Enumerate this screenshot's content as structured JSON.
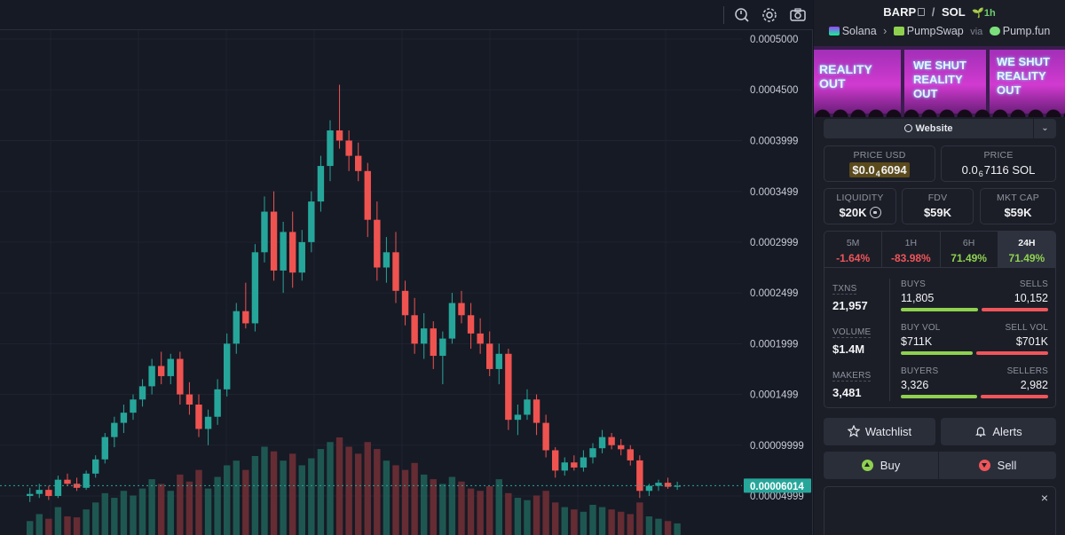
{
  "toolbar": {
    "icons": [
      "compare-icon",
      "settings-gear-icon",
      "camera-icon"
    ]
  },
  "price_axis": {
    "ticks": [
      "0.0005000",
      "0.0004500",
      "0.0003999",
      "0.0003499",
      "0.0002999",
      "0.0002499",
      "0.0001999",
      "0.0001499",
      "0.00009999",
      "0.00004999"
    ],
    "current_price_label": "0.00006014",
    "current_price_color": "#26a69a"
  },
  "chart_data": {
    "type": "candlestick",
    "up_color": "#26a69a",
    "down_color": "#ef5350",
    "ylim": [
      3e-05,
      0.0005
    ],
    "candles": [
      [
        5e-05,
        5.8e-05,
        4.4e-05,
        5.2e-05
      ],
      [
        5.2e-05,
        6.2e-05,
        4.8e-05,
        5.6e-05
      ],
      [
        5.6e-05,
        6e-05,
        4.6e-05,
        5e-05
      ],
      [
        5e-05,
        7e-05,
        4.8e-05,
        6.6e-05
      ],
      [
        6.6e-05,
        7.2e-05,
        6e-05,
        6.2e-05
      ],
      [
        6.2e-05,
        6.8e-05,
        5.5e-05,
        5.8e-05
      ],
      [
        5.8e-05,
        7.5e-05,
        5.6e-05,
        7.2e-05
      ],
      [
        7.2e-05,
        9e-05,
        6.8e-05,
        8.6e-05
      ],
      [
        8.6e-05,
        0.000112,
        8.2e-05,
        0.000108
      ],
      [
        0.000108,
        0.000128,
        9.8e-05,
        0.000122
      ],
      [
        0.000122,
        0.00014,
        0.000112,
        0.000132
      ],
      [
        0.000132,
        0.00015,
        0.000125,
        0.000145
      ],
      [
        0.000145,
        0.000165,
        0.000138,
        0.000158
      ],
      [
        0.000158,
        0.000185,
        0.00015,
        0.000178
      ],
      [
        0.000178,
        0.000192,
        0.00016,
        0.000168
      ],
      [
        0.000168,
        0.00019,
        0.00016,
        0.000185
      ],
      [
        0.000185,
        0.000192,
        0.00014,
        0.00015
      ],
      [
        0.00015,
        0.000162,
        0.00013,
        0.00014
      ],
      [
        0.00014,
        0.00015,
        0.000108,
        0.000116
      ],
      [
        0.000116,
        0.000135,
        0.0001,
        0.000128
      ],
      [
        0.000128,
        0.000165,
        0.00012,
        0.000155
      ],
      [
        0.000155,
        0.00021,
        0.000148,
        0.0002
      ],
      [
        0.0002,
        0.00024,
        0.00019,
        0.000232
      ],
      [
        0.000232,
        0.00026,
        0.000215,
        0.00022
      ],
      [
        0.00022,
        0.000298,
        0.000212,
        0.00029
      ],
      [
        0.00029,
        0.000345,
        0.00028,
        0.00033
      ],
      [
        0.00033,
        0.00035,
        0.000262,
        0.000272
      ],
      [
        0.000272,
        0.00032,
        0.00025,
        0.00031
      ],
      [
        0.00031,
        0.00033,
        0.000255,
        0.00027
      ],
      [
        0.00027,
        0.000312,
        0.000262,
        0.0003
      ],
      [
        0.0003,
        0.00035,
        0.00029,
        0.00034
      ],
      [
        0.00034,
        0.000385,
        0.00033,
        0.000375
      ],
      [
        0.000375,
        0.00042,
        0.00036,
        0.00041
      ],
      [
        0.00041,
        0.000455,
        0.000392,
        0.0004
      ],
      [
        0.0004,
        0.00041,
        0.00037,
        0.000385
      ],
      [
        0.000385,
        0.000398,
        0.00036,
        0.00037
      ],
      [
        0.00037,
        0.000378,
        0.000305,
        0.000322
      ],
      [
        0.000322,
        0.00034,
        0.000262,
        0.000275
      ],
      [
        0.000275,
        0.000305,
        0.00026,
        0.00029
      ],
      [
        0.00029,
        0.00031,
        0.00024,
        0.000252
      ],
      [
        0.000252,
        0.000262,
        0.000218,
        0.000228
      ],
      [
        0.000228,
        0.000245,
        0.00019,
        0.0002
      ],
      [
        0.0002,
        0.00023,
        0.000185,
        0.000215
      ],
      [
        0.000215,
        0.000222,
        0.000175,
        0.000188
      ],
      [
        0.000188,
        0.000212,
        0.00016,
        0.000205
      ],
      [
        0.000205,
        0.00025,
        0.0002,
        0.00024
      ],
      [
        0.00024,
        0.000252,
        0.00022,
        0.000228
      ],
      [
        0.000228,
        0.00024,
        0.000195,
        0.00021
      ],
      [
        0.00021,
        0.000225,
        0.00019,
        0.0002
      ],
      [
        0.0002,
        0.000212,
        0.000168,
        0.000175
      ],
      [
        0.000175,
        0.0002,
        0.00016,
        0.00019
      ],
      [
        0.00019,
        0.000195,
        0.000115,
        0.000125
      ],
      [
        0.000125,
        0.00014,
        0.00011,
        0.00013
      ],
      [
        0.00013,
        0.000155,
        0.000125,
        0.000145
      ],
      [
        0.000145,
        0.00015,
        0.00011,
        0.000122
      ],
      [
        0.000122,
        0.00013,
        8.8e-05,
        9.5e-05
      ],
      [
        9.5e-05,
        9.8e-05,
        6.8e-05,
        7.5e-05
      ],
      [
        7.5e-05,
        8.8e-05,
        7e-05,
        8.3e-05
      ],
      [
        8.3e-05,
        9e-05,
        7.5e-05,
        7.8e-05
      ],
      [
        7.8e-05,
        9.5e-05,
        7.4e-05,
        8.8e-05
      ],
      [
        8.8e-05,
        0.000102,
        8.2e-05,
        9.7e-05
      ],
      [
        9.7e-05,
        0.000115,
        9.2e-05,
        0.000108
      ],
      [
        0.000108,
        0.000112,
        9.6e-05,
        0.0001
      ],
      [
        0.0001,
        0.000106,
        9e-05,
        9.6e-05
      ],
      [
        9.6e-05,
        0.0001,
        8e-05,
        8.5e-05
      ],
      [
        8.5e-05,
        9e-05,
        4.8e-05,
        5.5e-05
      ],
      [
        5.5e-05,
        6.2e-05,
        5e-05,
        6e-05
      ],
      [
        6e-05,
        6.6e-05,
        5.5e-05,
        6.3e-05
      ],
      [
        6.3e-05,
        6.8e-05,
        5.7e-05,
        5.9e-05
      ],
      [
        5.9e-05,
        6.4e-05,
        5.6e-05,
        6e-05
      ]
    ],
    "volumes": [
      30,
      45,
      35,
      60,
      40,
      38,
      55,
      70,
      90,
      80,
      95,
      85,
      100,
      120,
      110,
      95,
      130,
      115,
      140,
      100,
      125,
      150,
      160,
      140,
      170,
      190,
      180,
      160,
      175,
      150,
      165,
      185,
      200,
      210,
      190,
      175,
      200,
      185,
      160,
      150,
      140,
      155,
      130,
      120,
      110,
      125,
      115,
      100,
      95,
      105,
      120,
      90,
      80,
      75,
      85,
      95,
      70,
      60,
      55,
      50,
      65,
      60,
      55,
      50,
      45,
      70,
      40,
      35,
      30,
      25
    ],
    "xlabel": "",
    "ylabel": ""
  },
  "pair": {
    "base": "BARP",
    "separator": "/",
    "quote": "SOL",
    "age": "1h"
  },
  "chain": {
    "network": "Solana",
    "dex": "PumpSwap",
    "via_label": "via",
    "launchpad": "Pump.fun"
  },
  "banner": {
    "screen_texts": [
      "REALITY OUT",
      "WE SHUT REALITY OUT",
      "WE SHUT REALITY OUT"
    ]
  },
  "website_button": {
    "label": "Website"
  },
  "price_usd": {
    "label": "PRICE USD",
    "prefix": "$0.0",
    "zeros": "4",
    "digits": "6094"
  },
  "price_sol": {
    "label": "PRICE",
    "prefix": "0.0",
    "zeros": "6",
    "digits": "7116 SOL"
  },
  "liquidity": {
    "label": "LIQUIDITY",
    "value": "$20K"
  },
  "fdv": {
    "label": "FDV",
    "value": "$59K"
  },
  "mkt_cap": {
    "label": "MKT CAP",
    "value": "$59K"
  },
  "timeframes": [
    {
      "label": "5M",
      "value": "-1.64%",
      "trend": "neg"
    },
    {
      "label": "1H",
      "value": "-83.98%",
      "trend": "neg"
    },
    {
      "label": "6H",
      "value": "71.49%",
      "trend": "pos"
    },
    {
      "label": "24H",
      "value": "71.49%",
      "trend": "pos",
      "active": true
    }
  ],
  "stats": {
    "txns": {
      "label": "TXNS",
      "value": "21,957"
    },
    "volume": {
      "label": "VOLUME",
      "value": "$1.4M"
    },
    "makers": {
      "label": "MAKERS",
      "value": "3,481"
    },
    "buys": {
      "label": "BUYS",
      "value": "11,805"
    },
    "sells": {
      "label": "SELLS",
      "value": "10,152"
    },
    "buys_ratio": 0.54,
    "buy_vol": {
      "label": "BUY VOL",
      "value": "$711K"
    },
    "sell_vol": {
      "label": "SELL VOL",
      "value": "$701K"
    },
    "vol_ratio": 0.5,
    "buyers": {
      "label": "BUYERS",
      "value": "3,326"
    },
    "sellers": {
      "label": "SELLERS",
      "value": "2,982"
    },
    "buyers_ratio": 0.53
  },
  "actions": {
    "watchlist": "Watchlist",
    "alerts": "Alerts",
    "buy": "Buy",
    "sell": "Sell",
    "close": "×"
  }
}
